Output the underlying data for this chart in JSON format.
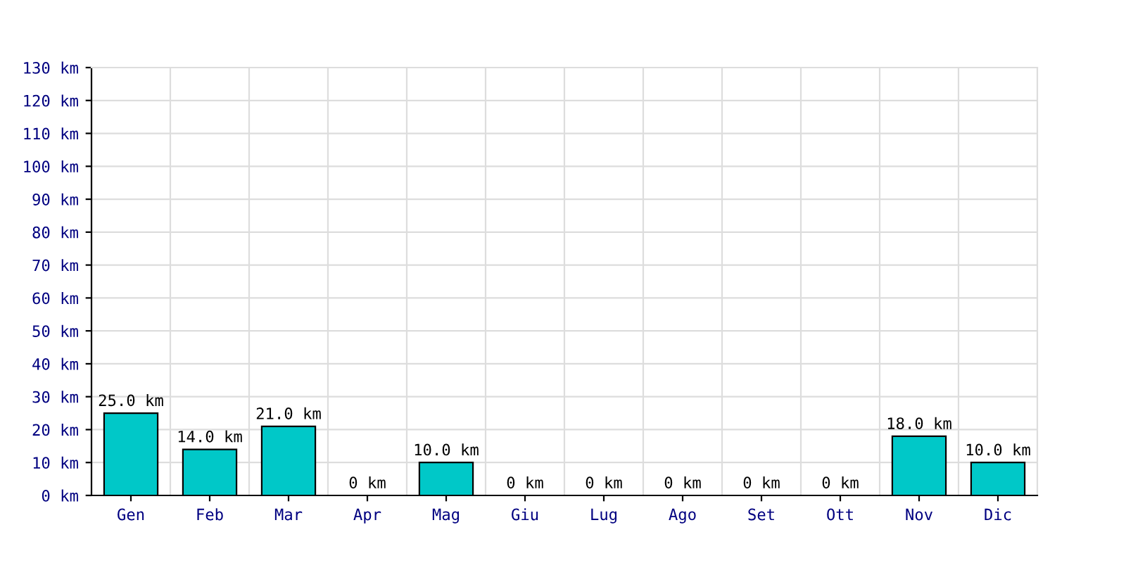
{
  "chart_data": {
    "type": "bar",
    "categories": [
      "Gen",
      "Feb",
      "Mar",
      "Apr",
      "Mag",
      "Giu",
      "Lug",
      "Ago",
      "Set",
      "Ott",
      "Nov",
      "Dic"
    ],
    "values": [
      25,
      14,
      21,
      0,
      10,
      0,
      0,
      0,
      0,
      0,
      18,
      10
    ],
    "value_labels": [
      "25.0 km",
      "14.0 km",
      "21.0 km",
      "0 km",
      "10.0 km",
      "0 km",
      "0 km",
      "0 km",
      "0 km",
      "0 km",
      "18.0 km",
      "10.0 km"
    ],
    "color": "#00c8c8",
    "ylim": [
      0,
      130
    ],
    "yticks": [
      {
        "value": 0,
        "label": "0 km"
      },
      {
        "value": 10,
        "label": "10 km"
      },
      {
        "value": 20,
        "label": "20 km"
      },
      {
        "value": 30,
        "label": "30 km"
      },
      {
        "value": 40,
        "label": "40 km"
      },
      {
        "value": 50,
        "label": "50 km"
      },
      {
        "value": 60,
        "label": "60 km"
      },
      {
        "value": 70,
        "label": "70 km"
      },
      {
        "value": 80,
        "label": "80 km"
      },
      {
        "value": 90,
        "label": "90 km"
      },
      {
        "value": 100,
        "label": "100 km"
      },
      {
        "value": 110,
        "label": "110 km"
      },
      {
        "value": 120,
        "label": "120 km"
      },
      {
        "value": 130,
        "label": "130 km"
      }
    ],
    "grid": true
  }
}
